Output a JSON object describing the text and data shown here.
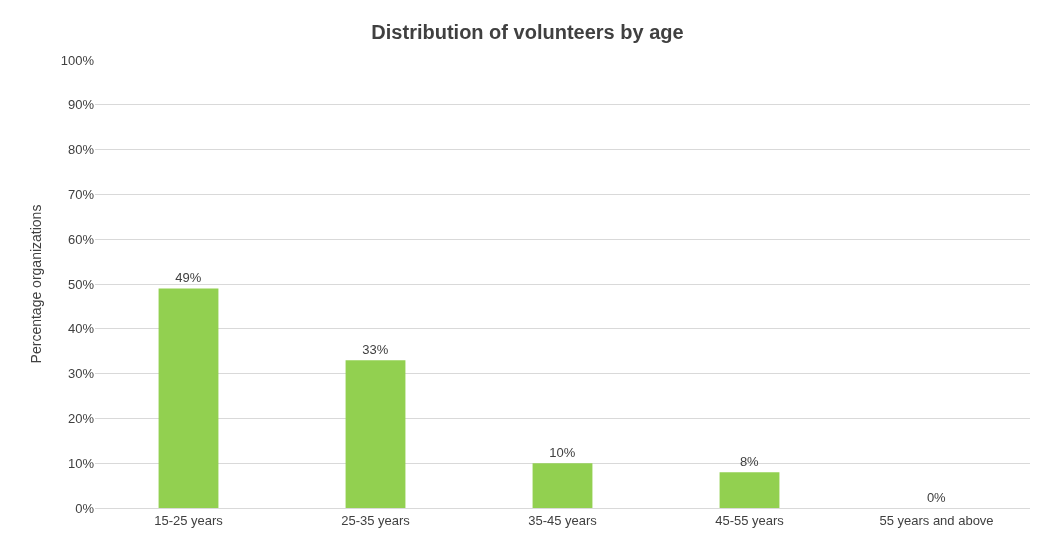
{
  "chart_data": {
    "type": "bar",
    "title": "Distribution of volunteers by age",
    "ylabel": "Percentage organizations",
    "categories": [
      "15-25 years",
      "25-35 years",
      "35-45 years",
      "45-55 years",
      "55 years and above"
    ],
    "values": [
      49,
      33,
      10,
      8,
      0
    ],
    "value_labels": [
      "49%",
      "33%",
      "10%",
      "8%",
      "0%"
    ],
    "color": "#92d050",
    "ylim": [
      0,
      100
    ],
    "yticks": [
      {
        "value": 0,
        "label": "0%"
      },
      {
        "value": 10,
        "label": "10%"
      },
      {
        "value": 20,
        "label": "20%"
      },
      {
        "value": 30,
        "label": "30%"
      },
      {
        "value": 40,
        "label": "40%"
      },
      {
        "value": 50,
        "label": "50%"
      },
      {
        "value": 60,
        "label": "60%"
      },
      {
        "value": 70,
        "label": "70%"
      },
      {
        "value": 80,
        "label": "80%"
      },
      {
        "value": 90,
        "label": "90%"
      },
      {
        "value": 100,
        "label": "100%"
      }
    ],
    "grid": "y"
  }
}
